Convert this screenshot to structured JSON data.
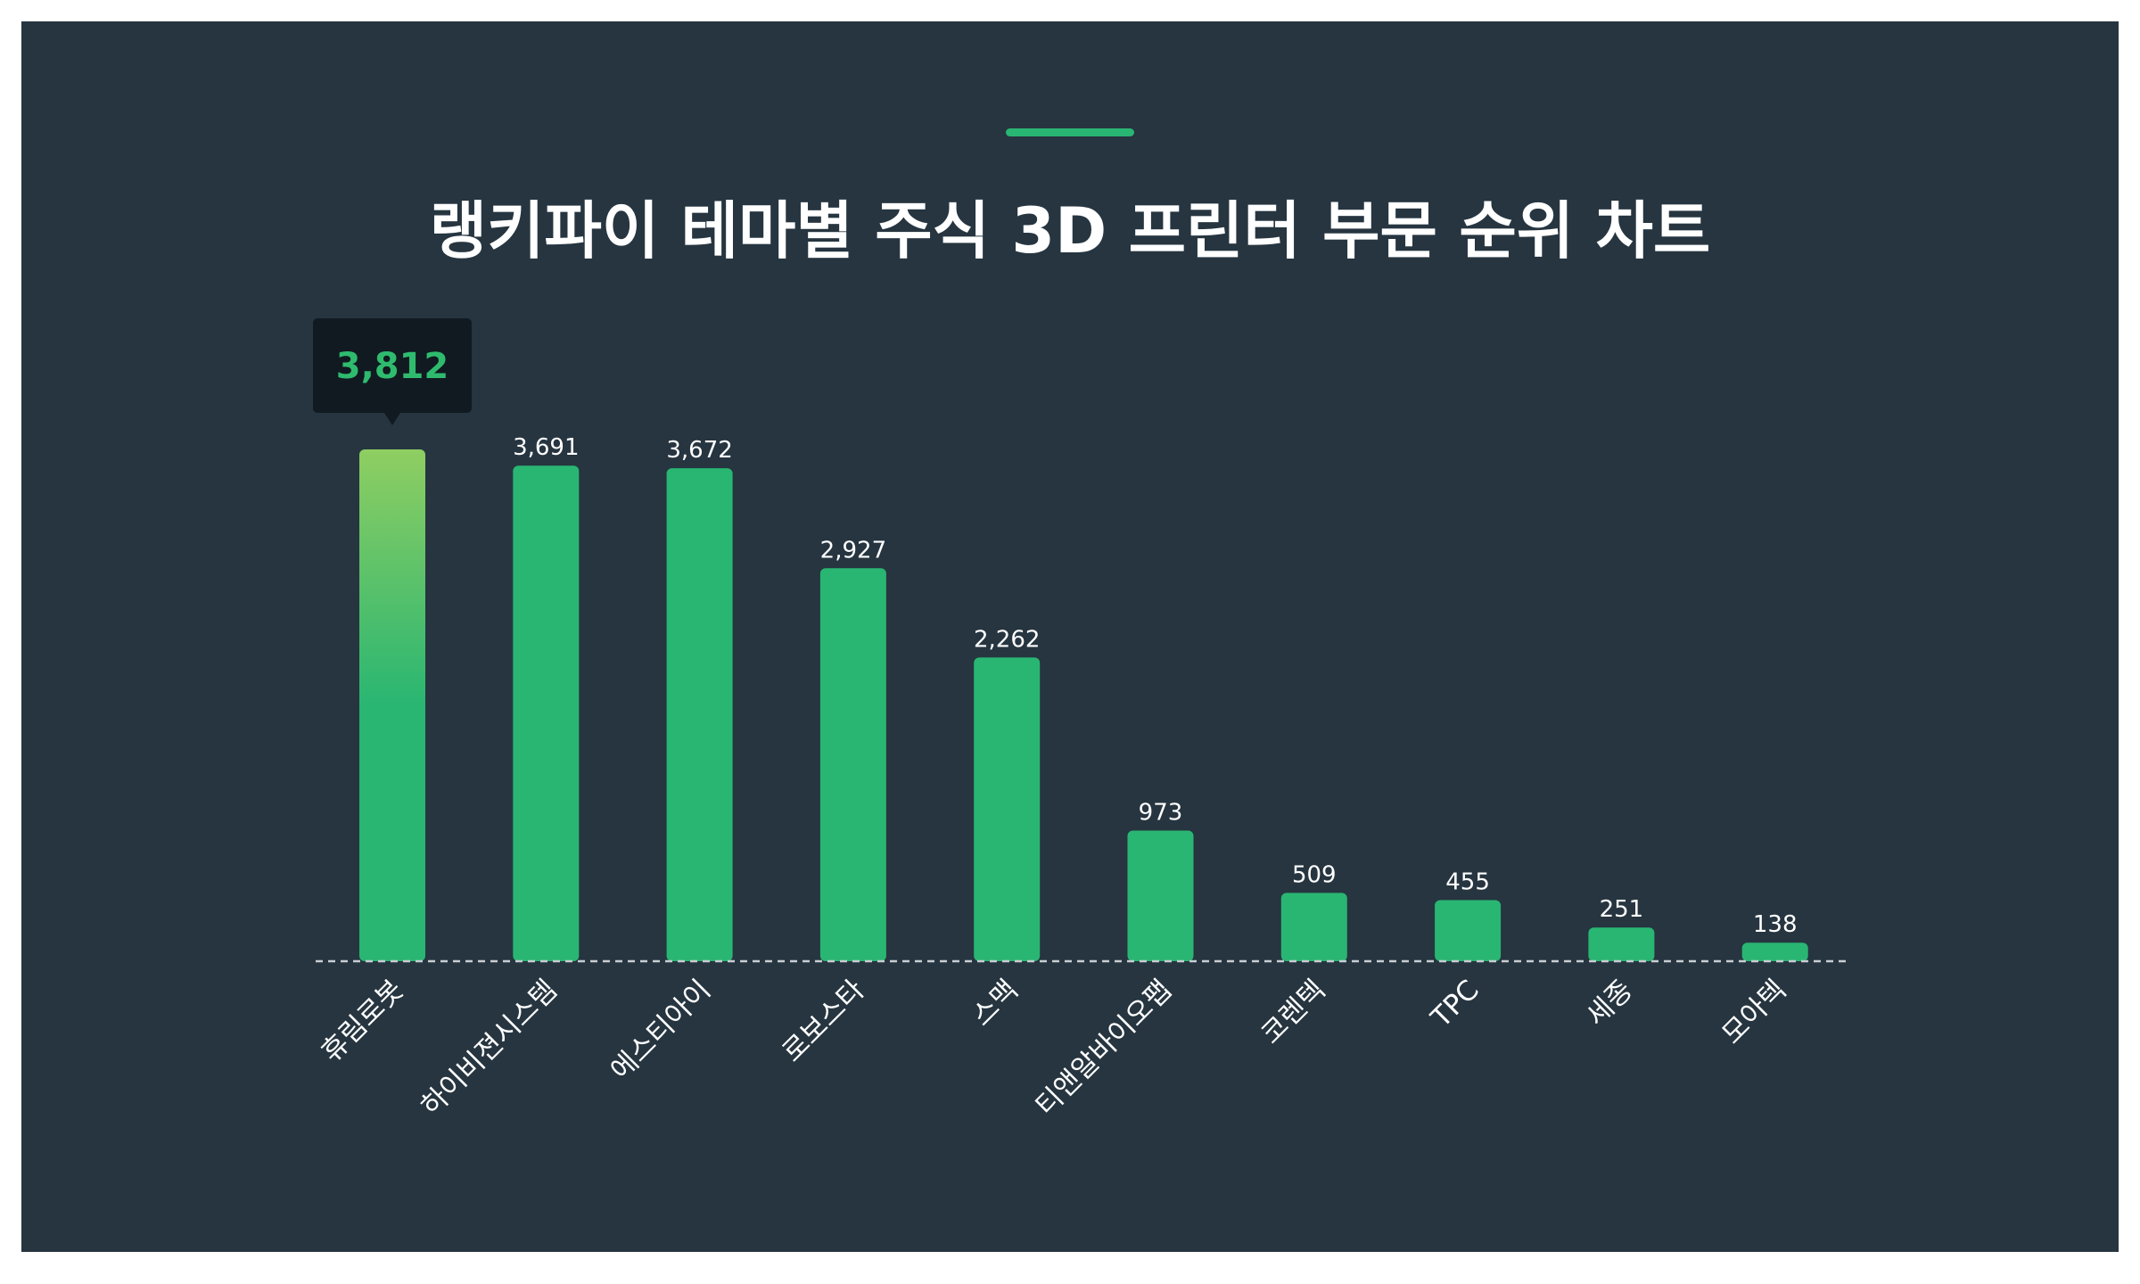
{
  "colors": {
    "background": "#263540",
    "bar": "#29b672",
    "bar_top_gradient": "#8fce62",
    "tooltip_bg": "#111a21",
    "tooltip_text": "#2fbb6e",
    "title_accent": "#29b672",
    "baseline": "#c8ced3"
  },
  "chart_data": {
    "type": "bar",
    "title": "랭키파이 테마별 주식 3D 프린터 부문 순위 차트",
    "categories": [
      "휴림로봇",
      "하이비젼시스템",
      "에스티아이",
      "로보스타",
      "스맥",
      "티앤알바이오팹",
      "코렌텍",
      "TPC",
      "세종",
      "모아텍"
    ],
    "values": [
      3812,
      3691,
      3672,
      2927,
      2262,
      973,
      509,
      455,
      251,
      138
    ],
    "value_labels": [
      "3,812",
      "3,691",
      "3,672",
      "2,927",
      "2,262",
      "973",
      "509",
      "455",
      "251",
      "138"
    ],
    "highlight_index": 0,
    "ylim": [
      0,
      3812
    ],
    "grid": false,
    "legend": "none"
  }
}
